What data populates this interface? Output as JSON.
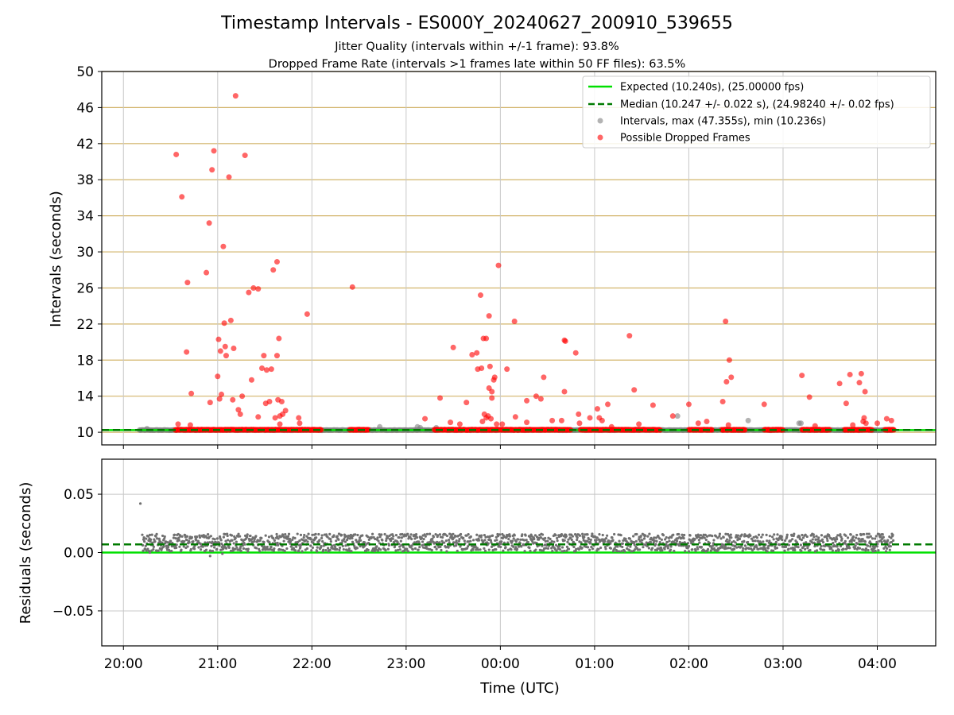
{
  "chart_data": {
    "type": "scatter",
    "title": "Timestamp Intervals - ES000Y_20240627_200910_539655",
    "subtitle1": "Jitter Quality (intervals within +/-1 frame): 93.8%",
    "subtitle2": "Dropped Frame Rate (intervals >1 frames late within 50 FF files): 63.5%",
    "xlabel": "Time (UTC)",
    "x_ticks": [
      "20:00",
      "21:00",
      "22:00",
      "23:00",
      "00:00",
      "01:00",
      "02:00",
      "03:00",
      "04:00"
    ],
    "x_tick_hours": [
      0,
      1,
      2,
      3,
      4,
      5,
      6,
      7,
      8
    ],
    "x_range_hours": [
      -0.23,
      8.62
    ],
    "data_range_hours": [
      0.17,
      8.17
    ],
    "top_panel": {
      "ylabel": "Intervals (seconds)",
      "ylim": [
        8.6,
        50
      ],
      "y_ticks": [
        10,
        14,
        18,
        22,
        26,
        30,
        34,
        38,
        42,
        46,
        50
      ],
      "expected_interval": 10.24,
      "median_interval": 10.247,
      "legend": {
        "position": "top-right",
        "expected_label": "Expected (10.240s), (25.00000 fps)",
        "median_label": "Median (10.247 +/- 0.022 s), (24.98240 +/- 0.02 fps)",
        "intervals_label": "Intervals, max (47.355s), min (10.236s)",
        "dropped_label": "Possible Dropped Frames"
      },
      "dropped_points": [
        [
          0.56,
          40.8
        ],
        [
          0.62,
          36.1
        ],
        [
          0.68,
          26.6
        ],
        [
          0.67,
          18.9
        ],
        [
          0.72,
          14.3
        ],
        [
          0.88,
          27.7
        ],
        [
          0.91,
          33.2
        ],
        [
          0.92,
          13.3
        ],
        [
          0.94,
          39.1
        ],
        [
          0.96,
          41.2
        ],
        [
          1.0,
          16.2
        ],
        [
          1.01,
          20.3
        ],
        [
          1.02,
          13.7
        ],
        [
          1.04,
          14.2
        ],
        [
          1.03,
          19.0
        ],
        [
          1.06,
          30.6
        ],
        [
          1.07,
          22.1
        ],
        [
          1.08,
          19.5
        ],
        [
          1.09,
          18.5
        ],
        [
          1.12,
          38.3
        ],
        [
          1.14,
          22.4
        ],
        [
          1.16,
          13.6
        ],
        [
          1.17,
          19.3
        ],
        [
          1.19,
          47.3
        ],
        [
          1.22,
          12.5
        ],
        [
          1.24,
          12.0
        ],
        [
          1.26,
          14.0
        ],
        [
          1.29,
          40.7
        ],
        [
          1.33,
          25.5
        ],
        [
          1.36,
          15.8
        ],
        [
          1.38,
          26.0
        ],
        [
          1.43,
          25.9
        ],
        [
          1.43,
          11.7
        ],
        [
          1.47,
          17.1
        ],
        [
          1.49,
          18.5
        ],
        [
          1.51,
          13.2
        ],
        [
          1.52,
          16.9
        ],
        [
          1.55,
          13.4
        ],
        [
          1.57,
          17.0
        ],
        [
          1.59,
          28.0
        ],
        [
          1.61,
          11.6
        ],
        [
          1.63,
          28.9
        ],
        [
          1.63,
          18.5
        ],
        [
          1.64,
          13.6
        ],
        [
          1.65,
          20.4
        ],
        [
          1.66,
          11.8
        ],
        [
          1.68,
          13.4
        ],
        [
          1.69,
          12.0
        ],
        [
          1.72,
          12.4
        ],
        [
          1.86,
          11.6
        ],
        [
          1.87,
          11.0
        ],
        [
          1.95,
          23.1
        ],
        [
          0.58,
          10.9
        ],
        [
          0.71,
          10.8
        ],
        [
          1.66,
          10.9
        ],
        [
          2.43,
          26.1
        ],
        [
          3.2,
          11.5
        ],
        [
          3.36,
          13.8
        ],
        [
          3.47,
          11.1
        ],
        [
          3.5,
          19.4
        ],
        [
          3.57,
          10.9
        ],
        [
          3.64,
          13.3
        ],
        [
          3.7,
          18.6
        ],
        [
          3.75,
          18.8
        ],
        [
          3.76,
          17.0
        ],
        [
          3.79,
          25.2
        ],
        [
          3.8,
          17.1
        ],
        [
          3.81,
          11.2
        ],
        [
          3.82,
          20.4
        ],
        [
          3.83,
          12.0
        ],
        [
          3.85,
          11.6
        ],
        [
          3.85,
          20.4
        ],
        [
          3.87,
          11.8
        ],
        [
          3.88,
          22.9
        ],
        [
          3.88,
          14.9
        ],
        [
          3.89,
          17.3
        ],
        [
          3.9,
          11.5
        ],
        [
          3.91,
          14.5
        ],
        [
          3.91,
          13.8
        ],
        [
          3.93,
          15.8
        ],
        [
          3.94,
          16.1
        ],
        [
          3.96,
          10.9
        ],
        [
          3.98,
          28.5
        ],
        [
          4.02,
          10.9
        ],
        [
          4.07,
          17.0
        ],
        [
          4.15,
          22.3
        ],
        [
          4.16,
          11.7
        ],
        [
          4.28,
          11.1
        ],
        [
          4.28,
          13.5
        ],
        [
          4.38,
          14.0
        ],
        [
          4.43,
          13.7
        ],
        [
          4.46,
          16.1
        ],
        [
          4.55,
          11.3
        ],
        [
          4.65,
          11.3
        ],
        [
          4.68,
          20.2
        ],
        [
          4.69,
          20.1
        ],
        [
          4.68,
          14.5
        ],
        [
          4.8,
          18.8
        ],
        [
          4.83,
          12.0
        ],
        [
          4.84,
          11.0
        ],
        [
          4.95,
          11.6
        ],
        [
          5.03,
          12.6
        ],
        [
          5.05,
          11.6
        ],
        [
          5.08,
          11.3
        ],
        [
          5.14,
          13.1
        ],
        [
          5.18,
          10.6
        ],
        [
          5.37,
          20.7
        ],
        [
          5.42,
          14.7
        ],
        [
          5.47,
          10.9
        ],
        [
          5.62,
          13.0
        ],
        [
          5.83,
          11.8
        ],
        [
          6.0,
          13.1
        ],
        [
          6.1,
          11.0
        ],
        [
          6.19,
          11.2
        ],
        [
          6.36,
          13.4
        ],
        [
          6.39,
          22.3
        ],
        [
          6.4,
          15.6
        ],
        [
          6.42,
          10.8
        ],
        [
          6.43,
          18.0
        ],
        [
          6.45,
          16.1
        ],
        [
          6.8,
          13.1
        ],
        [
          7.2,
          16.3
        ],
        [
          7.28,
          13.9
        ],
        [
          7.34,
          10.7
        ],
        [
          7.6,
          15.4
        ],
        [
          7.67,
          13.2
        ],
        [
          7.71,
          16.4
        ],
        [
          7.74,
          10.8
        ],
        [
          7.81,
          15.5
        ],
        [
          7.83,
          16.5
        ],
        [
          7.85,
          11.2
        ],
        [
          7.86,
          11.6
        ],
        [
          7.87,
          14.5
        ],
        [
          7.88,
          11.0
        ],
        [
          8.0,
          11.0
        ],
        [
          8.1,
          11.5
        ],
        [
          8.15,
          11.3
        ]
      ],
      "gray_points": [
        [
          0.25,
          10.4
        ],
        [
          2.72,
          10.6
        ],
        [
          3.12,
          10.6
        ],
        [
          3.15,
          10.5
        ],
        [
          5.88,
          11.8
        ],
        [
          6.63,
          11.3
        ],
        [
          7.17,
          11.0
        ],
        [
          7.19,
          11.0
        ],
        [
          3.32,
          10.5
        ]
      ],
      "dense_dropped_segments": [
        [
          0.55,
          2.1
        ],
        [
          2.4,
          2.6
        ],
        [
          3.3,
          4.75
        ],
        [
          4.85,
          5.7
        ],
        [
          6.0,
          6.25
        ],
        [
          6.35,
          6.6
        ],
        [
          6.8,
          7.0
        ],
        [
          7.2,
          7.5
        ],
        [
          7.65,
          7.95
        ],
        [
          8.08,
          8.18
        ]
      ]
    },
    "bottom_panel": {
      "ylabel": "Residuals (seconds)",
      "ylim": [
        -0.08,
        0.08
      ],
      "y_ticks": [
        -0.05,
        0.0,
        0.05
      ],
      "y_tick_labels": [
        "−0.05",
        "0.00",
        "0.05"
      ],
      "expected_residual": 0.0,
      "median_residual": 0.007,
      "outlier_points": [
        [
          0.18,
          0.042
        ],
        [
          0.92,
          -0.003
        ],
        [
          1.05,
          -0.001
        ],
        [
          0.28,
          0.0
        ],
        [
          6.0,
          0.001
        ]
      ]
    },
    "colors": {
      "expected": "#00e000",
      "median": "#007a00",
      "dropped": "#ff0000",
      "interval_gray": "#808080",
      "hgrid_top": "#d2b46a",
      "vgrid": "#c8c8c8"
    }
  }
}
